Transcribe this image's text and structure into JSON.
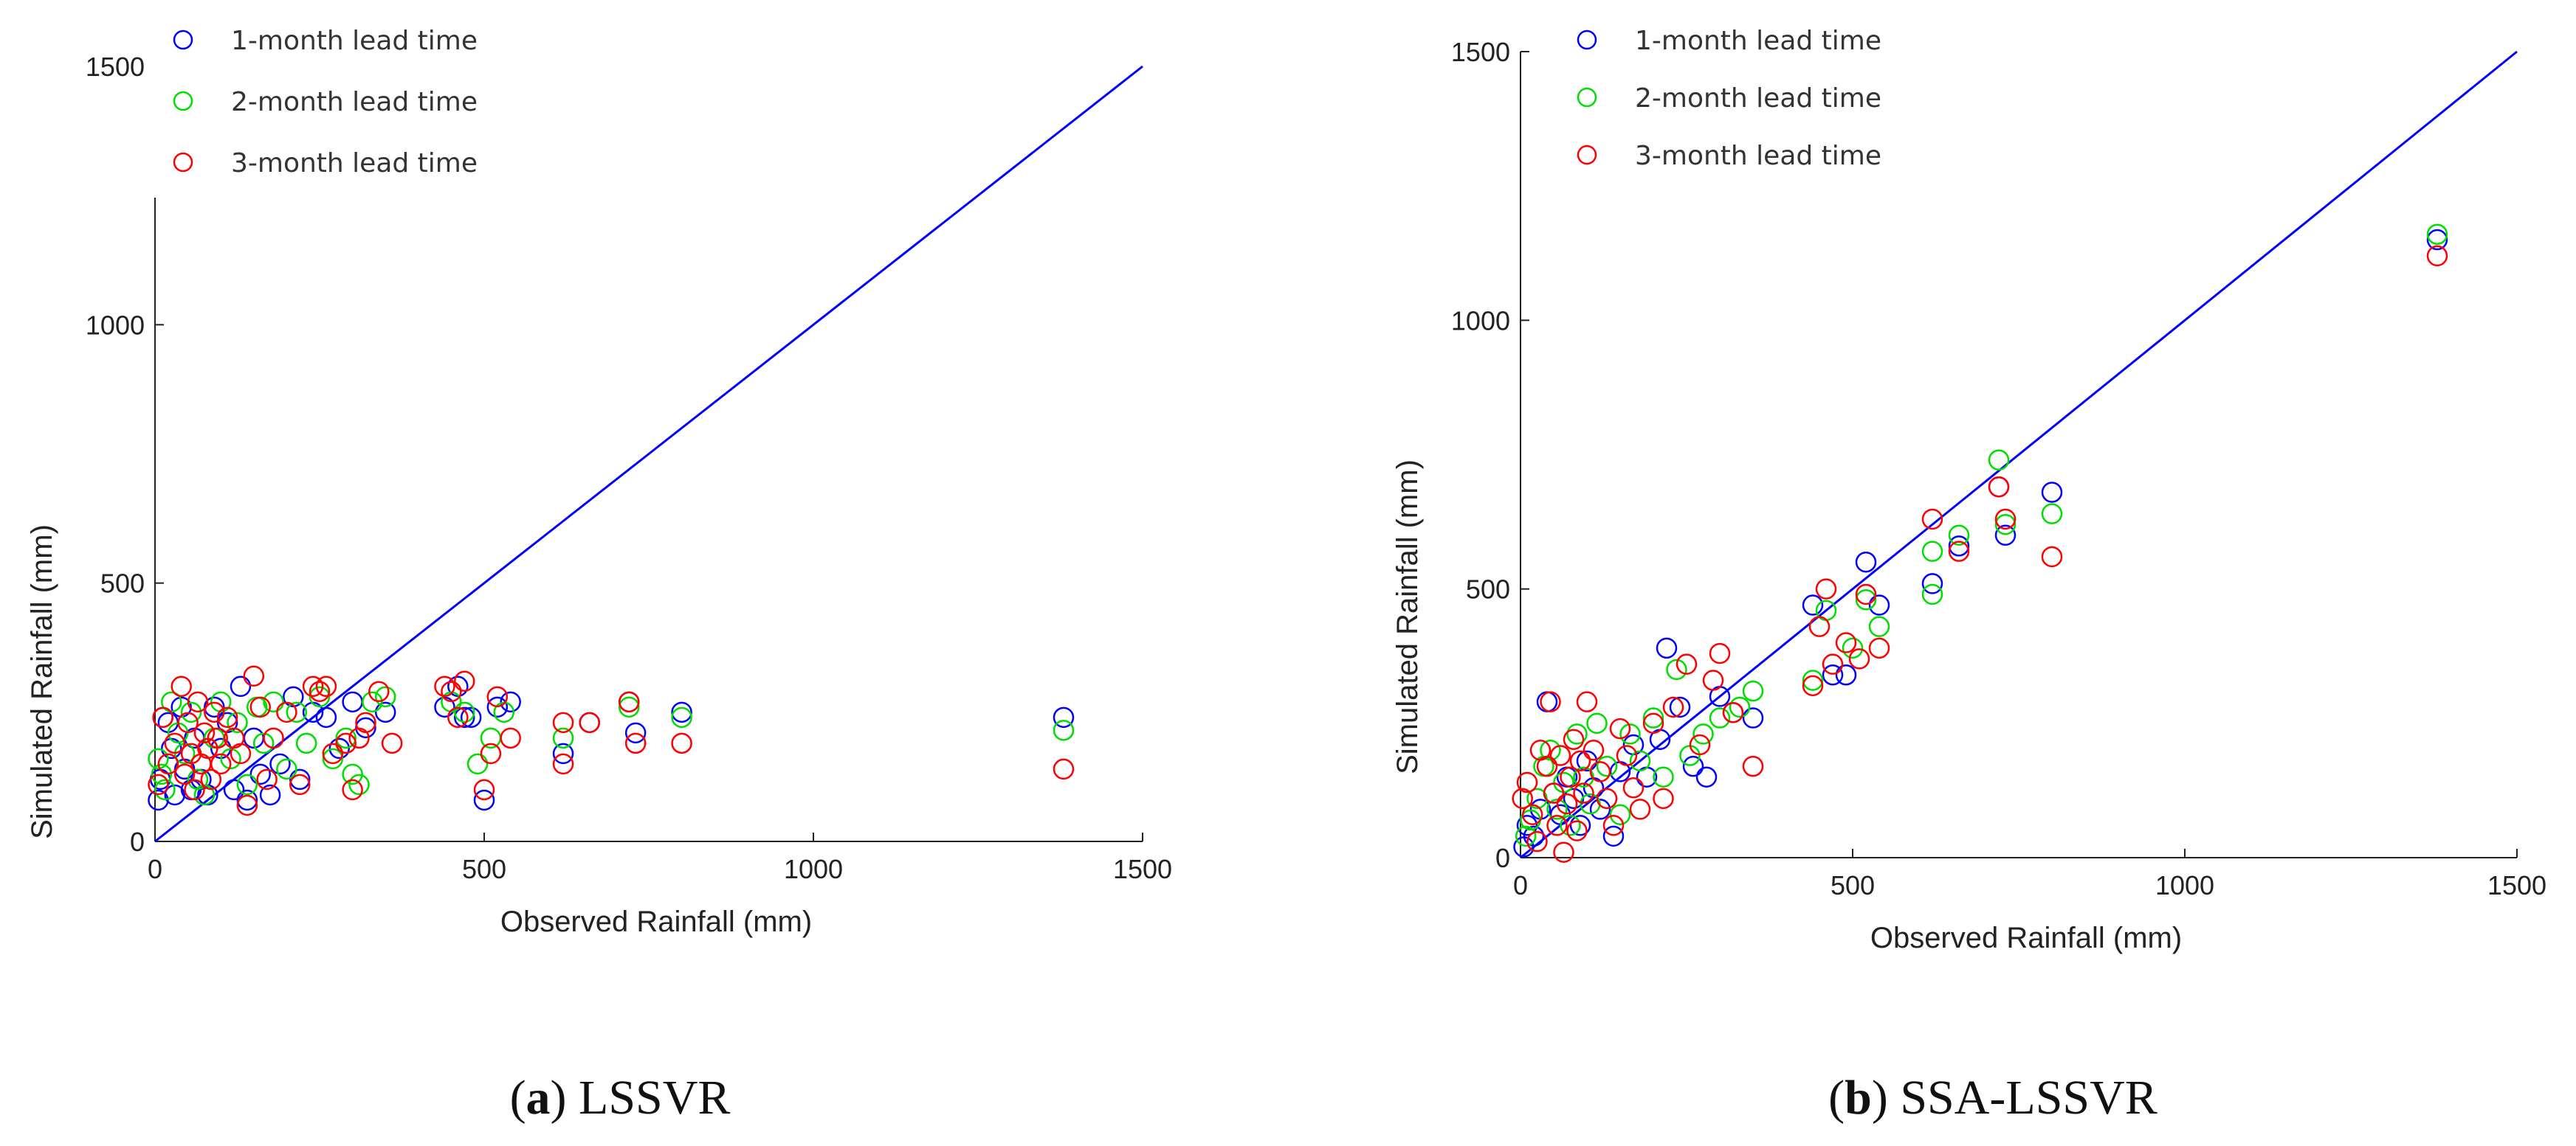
{
  "figure": {
    "panels": [
      "a",
      "b"
    ]
  },
  "chart_data": [
    {
      "id": "a",
      "type": "scatter",
      "title": "",
      "caption_letter": "a",
      "caption_text": "LSSVR",
      "xlabel": "Observed Rainfall (mm)",
      "ylabel": "Simulated Rainfall (mm)",
      "xlim": [
        0,
        1500
      ],
      "ylim": [
        0,
        1500
      ],
      "xticks": [
        0,
        500,
        1000,
        1500
      ],
      "yticks": [
        0,
        500,
        1000,
        1500
      ],
      "grid": false,
      "legend_position": "top-left",
      "reference_line": {
        "from": [
          0,
          0
        ],
        "to": [
          1500,
          1500
        ],
        "color": "#0000ff"
      },
      "series": [
        {
          "name": "1-month lead time",
          "color": "#0000ff",
          "points": [
            [
              5,
              80
            ],
            [
              8,
              120
            ],
            [
              12,
              240
            ],
            [
              20,
              230
            ],
            [
              25,
              180
            ],
            [
              30,
              90
            ],
            [
              40,
              260
            ],
            [
              45,
              140
            ],
            [
              55,
              100
            ],
            [
              60,
              200
            ],
            [
              70,
              120
            ],
            [
              80,
              90
            ],
            [
              90,
              260
            ],
            [
              100,
              180
            ],
            [
              110,
              230
            ],
            [
              120,
              100
            ],
            [
              130,
              300
            ],
            [
              140,
              80
            ],
            [
              150,
              200
            ],
            [
              160,
              130
            ],
            [
              175,
              90
            ],
            [
              190,
              150
            ],
            [
              210,
              280
            ],
            [
              220,
              120
            ],
            [
              240,
              250
            ],
            [
              260,
              240
            ],
            [
              280,
              180
            ],
            [
              300,
              270
            ],
            [
              320,
              220
            ],
            [
              350,
              250
            ],
            [
              440,
              260
            ],
            [
              460,
              300
            ],
            [
              470,
              240
            ],
            [
              480,
              240
            ],
            [
              500,
              80
            ],
            [
              520,
              260
            ],
            [
              540,
              270
            ],
            [
              620,
              170
            ],
            [
              660,
              230
            ],
            [
              720,
              270
            ],
            [
              730,
              210
            ],
            [
              800,
              250
            ],
            [
              1380,
              240
            ]
          ]
        },
        {
          "name": "2-month lead time",
          "color": "#00dd00",
          "points": [
            [
              5,
              160
            ],
            [
              10,
              130
            ],
            [
              15,
              100
            ],
            [
              25,
              270
            ],
            [
              35,
              210
            ],
            [
              45,
              170
            ],
            [
              55,
              250
            ],
            [
              65,
              120
            ],
            [
              75,
              90
            ],
            [
              90,
              200
            ],
            [
              100,
              270
            ],
            [
              115,
              160
            ],
            [
              125,
              230
            ],
            [
              140,
              110
            ],
            [
              155,
              260
            ],
            [
              165,
              190
            ],
            [
              180,
              270
            ],
            [
              200,
              140
            ],
            [
              215,
              250
            ],
            [
              230,
              190
            ],
            [
              250,
              280
            ],
            [
              270,
              160
            ],
            [
              290,
              200
            ],
            [
              300,
              130
            ],
            [
              310,
              110
            ],
            [
              330,
              270
            ],
            [
              350,
              280
            ],
            [
              450,
              270
            ],
            [
              470,
              250
            ],
            [
              490,
              150
            ],
            [
              510,
              200
            ],
            [
              530,
              250
            ],
            [
              620,
              200
            ],
            [
              720,
              260
            ],
            [
              800,
              240
            ],
            [
              1380,
              215
            ]
          ]
        },
        {
          "name": "3-month lead time",
          "color": "#ff0000",
          "points": [
            [
              5,
              110
            ],
            [
              12,
              240
            ],
            [
              20,
              150
            ],
            [
              30,
              190
            ],
            [
              40,
              300
            ],
            [
              45,
              130
            ],
            [
              50,
              230
            ],
            [
              55,
              170
            ],
            [
              60,
              100
            ],
            [
              65,
              270
            ],
            [
              70,
              150
            ],
            [
              75,
              210
            ],
            [
              80,
              180
            ],
            [
              85,
              120
            ],
            [
              90,
              250
            ],
            [
              95,
              200
            ],
            [
              100,
              150
            ],
            [
              110,
              240
            ],
            [
              120,
              200
            ],
            [
              130,
              170
            ],
            [
              140,
              70
            ],
            [
              150,
              320
            ],
            [
              160,
              260
            ],
            [
              170,
              120
            ],
            [
              180,
              200
            ],
            [
              200,
              250
            ],
            [
              220,
              110
            ],
            [
              240,
              300
            ],
            [
              250,
              290
            ],
            [
              260,
              300
            ],
            [
              270,
              170
            ],
            [
              290,
              190
            ],
            [
              300,
              100
            ],
            [
              310,
              200
            ],
            [
              320,
              230
            ],
            [
              340,
              290
            ],
            [
              360,
              190
            ],
            [
              440,
              300
            ],
            [
              450,
              290
            ],
            [
              460,
              240
            ],
            [
              470,
              310
            ],
            [
              500,
              100
            ],
            [
              510,
              170
            ],
            [
              520,
              280
            ],
            [
              540,
              200
            ],
            [
              620,
              150
            ],
            [
              620,
              230
            ],
            [
              660,
              230
            ],
            [
              720,
              270
            ],
            [
              730,
              190
            ],
            [
              800,
              190
            ],
            [
              1380,
              140
            ]
          ]
        }
      ]
    },
    {
      "id": "b",
      "type": "scatter",
      "title": "",
      "caption_letter": "b",
      "caption_text": "SSA-LSSVR",
      "xlabel": "Observed Rainfall (mm)",
      "ylabel": "Simulated Rainfall (mm)",
      "xlim": [
        0,
        1500
      ],
      "ylim": [
        0,
        1500
      ],
      "xticks": [
        0,
        500,
        1000,
        1500
      ],
      "yticks": [
        0,
        500,
        1000,
        1500
      ],
      "grid": false,
      "legend_position": "top-left",
      "reference_line": {
        "from": [
          0,
          0
        ],
        "to": [
          1500,
          1500
        ],
        "color": "#0000ff"
      },
      "series": [
        {
          "name": "1-month lead time",
          "color": "#0000ff",
          "points": [
            [
              5,
              20
            ],
            [
              10,
              60
            ],
            [
              20,
              40
            ],
            [
              30,
              90
            ],
            [
              40,
              290
            ],
            [
              50,
              120
            ],
            [
              60,
              80
            ],
            [
              70,
              150
            ],
            [
              80,
              110
            ],
            [
              90,
              60
            ],
            [
              100,
              180
            ],
            [
              110,
              130
            ],
            [
              120,
              90
            ],
            [
              140,
              40
            ],
            [
              150,
              160
            ],
            [
              170,
              210
            ],
            [
              190,
              150
            ],
            [
              210,
              220
            ],
            [
              220,
              390
            ],
            [
              240,
              280
            ],
            [
              260,
              170
            ],
            [
              280,
              150
            ],
            [
              300,
              300
            ],
            [
              320,
              270
            ],
            [
              350,
              260
            ],
            [
              440,
              470
            ],
            [
              470,
              340
            ],
            [
              490,
              340
            ],
            [
              520,
              550
            ],
            [
              540,
              470
            ],
            [
              620,
              510
            ],
            [
              660,
              580
            ],
            [
              720,
              690
            ],
            [
              730,
              600
            ],
            [
              800,
              680
            ],
            [
              1380,
              1150
            ]
          ]
        },
        {
          "name": "2-month lead time",
          "color": "#00dd00",
          "points": [
            [
              8,
              40
            ],
            [
              15,
              70
            ],
            [
              25,
              110
            ],
            [
              35,
              170
            ],
            [
              45,
              200
            ],
            [
              55,
              90
            ],
            [
              65,
              140
            ],
            [
              75,
              60
            ],
            [
              85,
              230
            ],
            [
              95,
              150
            ],
            [
              105,
              100
            ],
            [
              115,
              250
            ],
            [
              130,
              170
            ],
            [
              150,
              80
            ],
            [
              165,
              230
            ],
            [
              180,
              180
            ],
            [
              200,
              260
            ],
            [
              215,
              150
            ],
            [
              235,
              350
            ],
            [
              255,
              190
            ],
            [
              275,
              230
            ],
            [
              300,
              260
            ],
            [
              330,
              280
            ],
            [
              350,
              310
            ],
            [
              440,
              330
            ],
            [
              460,
              460
            ],
            [
              500,
              390
            ],
            [
              520,
              480
            ],
            [
              540,
              430
            ],
            [
              620,
              490
            ],
            [
              620,
              570
            ],
            [
              660,
              600
            ],
            [
              720,
              740
            ],
            [
              730,
              620
            ],
            [
              800,
              640
            ],
            [
              1380,
              1160
            ]
          ]
        },
        {
          "name": "3-month lead time",
          "color": "#ff0000",
          "points": [
            [
              3,
              110
            ],
            [
              10,
              140
            ],
            [
              18,
              80
            ],
            [
              25,
              30
            ],
            [
              30,
              200
            ],
            [
              40,
              170
            ],
            [
              45,
              290
            ],
            [
              50,
              120
            ],
            [
              55,
              60
            ],
            [
              60,
              190
            ],
            [
              65,
              10
            ],
            [
              70,
              100
            ],
            [
              75,
              150
            ],
            [
              80,
              220
            ],
            [
              85,
              50
            ],
            [
              90,
              180
            ],
            [
              95,
              120
            ],
            [
              100,
              290
            ],
            [
              110,
              200
            ],
            [
              120,
              160
            ],
            [
              130,
              110
            ],
            [
              140,
              60
            ],
            [
              150,
              240
            ],
            [
              160,
              190
            ],
            [
              170,
              130
            ],
            [
              180,
              90
            ],
            [
              200,
              250
            ],
            [
              215,
              110
            ],
            [
              230,
              280
            ],
            [
              250,
              360
            ],
            [
              270,
              210
            ],
            [
              290,
              330
            ],
            [
              300,
              380
            ],
            [
              320,
              270
            ],
            [
              350,
              170
            ],
            [
              440,
              320
            ],
            [
              450,
              430
            ],
            [
              460,
              500
            ],
            [
              470,
              360
            ],
            [
              490,
              400
            ],
            [
              510,
              370
            ],
            [
              520,
              490
            ],
            [
              540,
              390
            ],
            [
              620,
              630
            ],
            [
              660,
              570
            ],
            [
              720,
              690
            ],
            [
              730,
              630
            ],
            [
              800,
              560
            ],
            [
              1380,
              1120
            ]
          ]
        }
      ]
    }
  ]
}
